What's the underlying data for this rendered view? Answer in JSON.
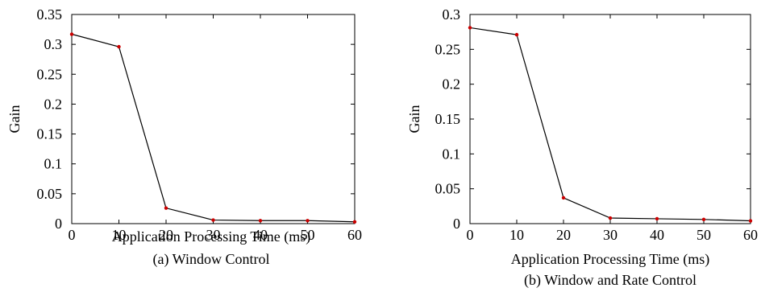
{
  "chart_data": [
    {
      "type": "line",
      "caption": "(a) Window Control",
      "xlabel": "Application Processing Time (ms)",
      "ylabel": "Gain",
      "xlim": [
        0,
        60
      ],
      "ylim": [
        0,
        0.35
      ],
      "xticks": [
        0,
        10,
        20,
        30,
        40,
        50,
        60
      ],
      "yticks": [
        0,
        0.05,
        0.1,
        0.15,
        0.2,
        0.25,
        0.3,
        0.35
      ],
      "x": [
        0,
        10,
        20,
        30,
        40,
        50,
        60
      ],
      "y": [
        0.317,
        0.296,
        0.026,
        0.006,
        0.005,
        0.005,
        0.003
      ],
      "line_color": "#000000",
      "marker_color": "#cc0000",
      "grid": false
    },
    {
      "type": "line",
      "caption": "(b) Window and Rate Control",
      "xlabel": "Application Processing Time (ms)",
      "ylabel": "Gain",
      "xlim": [
        0,
        60
      ],
      "ylim": [
        0,
        0.3
      ],
      "xticks": [
        0,
        10,
        20,
        30,
        40,
        50,
        60
      ],
      "yticks": [
        0,
        0.05,
        0.1,
        0.15,
        0.2,
        0.25,
        0.3
      ],
      "x": [
        0,
        10,
        20,
        30,
        40,
        50,
        60
      ],
      "y": [
        0.281,
        0.271,
        0.037,
        0.008,
        0.007,
        0.006,
        0.004
      ],
      "line_color": "#000000",
      "marker_color": "#cc0000",
      "grid": false
    }
  ]
}
